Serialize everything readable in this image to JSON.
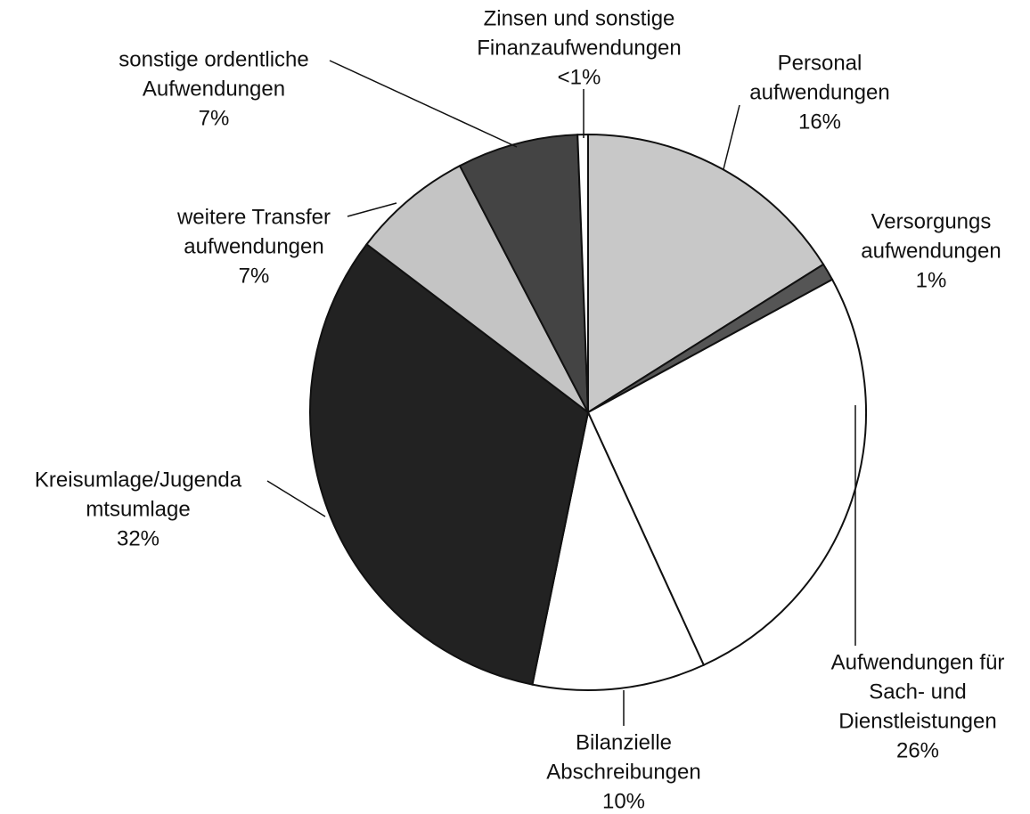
{
  "chart_data": {
    "type": "pie",
    "categories": [
      [
        "Personal",
        "aufwendungen"
      ],
      [
        "Versorgungs",
        "aufwendungen"
      ],
      [
        "Aufwendungen für",
        "Sach- und",
        "Dienstleistungen"
      ],
      [
        "Bilanzielle",
        "Abschreibungen"
      ],
      [
        "Kreisumlage/Jugenda",
        "mtsumlage"
      ],
      [
        "weitere Transfer",
        "aufwendungen"
      ],
      [
        "sonstige ordentliche",
        "Aufwendungen"
      ],
      [
        "Zinsen und sonstige",
        "Finanzaufwendungen"
      ]
    ],
    "values": [
      16,
      1,
      26,
      10,
      32,
      7,
      7,
      0.6
    ],
    "value_labels": [
      "16%",
      "1%",
      "26%",
      "10%",
      "32%",
      "7%",
      "7%",
      "<1%"
    ],
    "colors": [
      "#c8c8c8",
      "#555555",
      "#ffffff",
      "#ffffff",
      "#222222",
      "#c4c4c4",
      "#444444",
      "#ffffff"
    ]
  }
}
